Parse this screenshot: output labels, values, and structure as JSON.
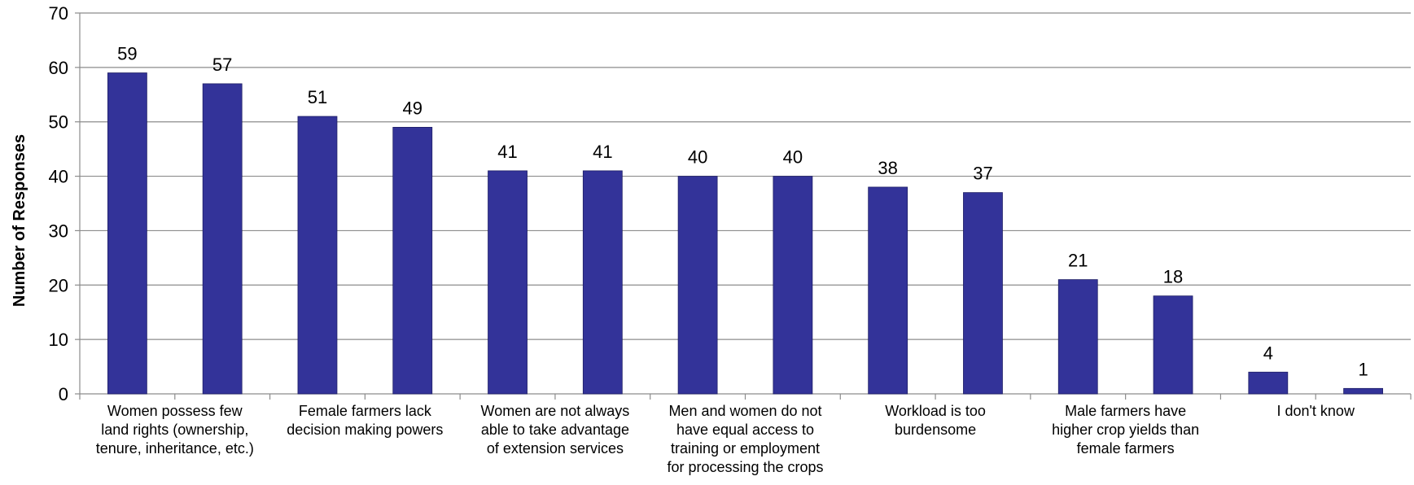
{
  "chart_data": {
    "type": "bar",
    "ylabel": "Number of Responses",
    "xlabel": "",
    "title": "",
    "ylim": [
      0,
      70
    ],
    "yticks": [
      0,
      10,
      20,
      30,
      40,
      50,
      60,
      70
    ],
    "grid": true,
    "legend": "none",
    "bar_color": "#333399",
    "values": [
      59,
      57,
      51,
      49,
      41,
      41,
      40,
      40,
      38,
      37,
      21,
      18,
      4,
      1
    ],
    "category_labels": [
      {
        "lines": [
          "Women possess few",
          "land rights (ownership,",
          "tenure, inheritance, etc.)"
        ],
        "group_start": 0
      },
      {
        "lines": [
          "Female farmers lack",
          "decision making powers"
        ],
        "group_start": 2
      },
      {
        "lines": [
          "Women are not always",
          "able to take advantage",
          "of extension services"
        ],
        "group_start": 4
      },
      {
        "lines": [
          "Men and women do not",
          "have equal access to",
          "training or employment",
          "for processing the crops"
        ],
        "group_start": 6
      },
      {
        "lines": [
          "Workload is too",
          "burdensome"
        ],
        "group_start": 8
      },
      {
        "lines": [
          "Male farmers have",
          "higher crop yields than",
          "female farmers"
        ],
        "group_start": 10
      },
      {
        "lines": [
          "I don't know"
        ],
        "group_start": 12
      }
    ]
  }
}
